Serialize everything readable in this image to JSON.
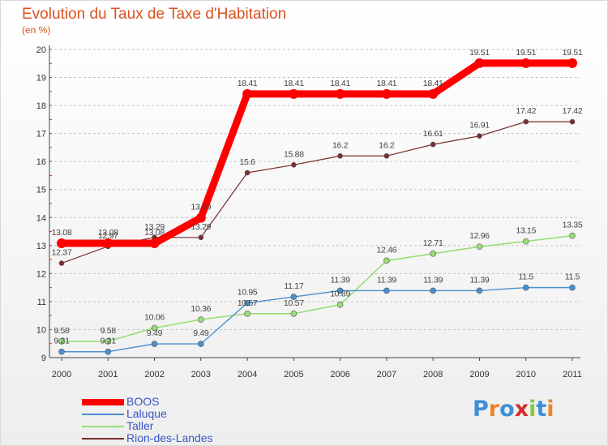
{
  "title": "Evolution du Taux de Taxe d'Habitation",
  "subtitle": "(en %)",
  "logo": {
    "text": "Proxiti",
    "letters": [
      "P",
      "r",
      "o",
      "x",
      "i",
      "t",
      "i"
    ],
    "colors": [
      "#3b8fd8",
      "#e9842b",
      "#3b8fd8",
      "#d22d2d",
      "#8dc63f",
      "#3b8fd8",
      "#e9842b"
    ]
  },
  "chart_data": {
    "type": "line",
    "title": "Evolution du Taux de Taxe d'Habitation",
    "ylabel": "(en %)",
    "xlabel": "",
    "x": [
      2000,
      2001,
      2002,
      2003,
      2004,
      2005,
      2006,
      2007,
      2008,
      2009,
      2010,
      2011
    ],
    "ylim": [
      9,
      20
    ],
    "yticks": [
      9,
      10,
      11,
      12,
      13,
      14,
      15,
      16,
      17,
      18,
      19,
      20
    ],
    "grid": "horizontal dashed",
    "legend_position": "bottom-left",
    "series": [
      {
        "name": "BOOS",
        "color": "#ff0000",
        "values": [
          13.08,
          13.08,
          13.08,
          13.99,
          18.41,
          18.41,
          18.41,
          18.41,
          18.41,
          19.51,
          19.51,
          19.51
        ],
        "labels": [
          "13.08",
          "13.08",
          "13.08",
          "13.99",
          "18.41",
          "18.41",
          "18.41",
          "18.41",
          "18.41",
          "19.51",
          "19.51",
          "19.51"
        ]
      },
      {
        "name": "Laluque",
        "color": "#4b8ed0",
        "values": [
          9.21,
          9.21,
          9.49,
          9.49,
          10.95,
          11.17,
          11.39,
          11.39,
          11.39,
          11.39,
          11.5,
          11.5
        ],
        "labels": [
          "9.21",
          "9.21",
          "9.49",
          "9.49",
          "10.95",
          "11.17",
          "11.39",
          "11.39",
          "11.39",
          "11.39",
          "11.5",
          "11.5"
        ]
      },
      {
        "name": "Taller",
        "color": "#99dd77",
        "values": [
          9.58,
          9.58,
          10.06,
          10.36,
          10.57,
          10.57,
          10.89,
          12.46,
          12.71,
          12.96,
          13.15,
          13.35
        ],
        "labels": [
          "9.58",
          "9.58",
          "10.06",
          "10.36",
          "10.57",
          "10.57",
          "10.89",
          "12.46",
          "12.71",
          "12.96",
          "13.15",
          "13.35"
        ]
      },
      {
        "name": "Rion-des-Landes",
        "color": "#7a2e2e",
        "values": [
          12.37,
          12.97,
          13.29,
          13.29,
          15.6,
          15.88,
          16.2,
          16.2,
          16.61,
          16.91,
          17.42,
          17.42
        ],
        "labels": [
          "12.37",
          "12.97",
          "13.29",
          "13.29",
          "15.6",
          "15.88",
          "16.2",
          "16.2",
          "16.61",
          "16.91",
          "17.42",
          "17.42"
        ]
      }
    ]
  }
}
